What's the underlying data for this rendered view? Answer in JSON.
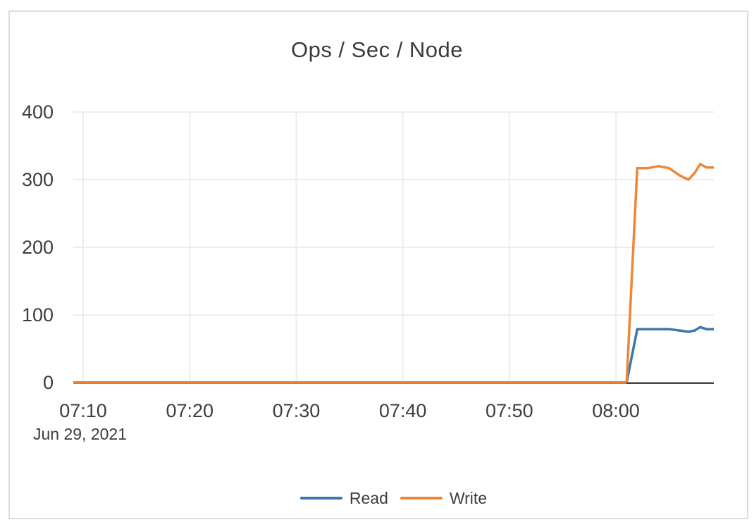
{
  "chart": {
    "title": "Ops / Sec / Node",
    "date_label": "Jun 29, 2021"
  },
  "chart_data": {
    "type": "line",
    "title": "Ops / Sec / Node",
    "xlabel": "time of day on Jun 29, 2021 (HH:MM)",
    "ylabel": "",
    "x_unit": "minutes after 07:00",
    "x_range_minutes": [
      9.07,
      69.19
    ],
    "ylim": [
      0,
      400
    ],
    "y_ticks": [
      0,
      100,
      200,
      300,
      400
    ],
    "x_ticks": [
      {
        "minute": 10,
        "label": "07:10"
      },
      {
        "minute": 20,
        "label": "07:20"
      },
      {
        "minute": 30,
        "label": "07:30"
      },
      {
        "minute": 40,
        "label": "07:40"
      },
      {
        "minute": 50,
        "label": "07:50"
      },
      {
        "minute": 60,
        "label": "08:00"
      }
    ],
    "date_label": "Jun 29, 2021",
    "grid": true,
    "legend_position": "bottom-center",
    "series": [
      {
        "name": "Read",
        "color": "#3a77ae",
        "x": [
          9.07,
          61,
          62,
          63,
          64,
          65,
          66,
          66.8,
          67.4,
          67.9,
          68.5,
          69.19
        ],
        "values": [
          0,
          0,
          79,
          79,
          79,
          79,
          77,
          75,
          77,
          82,
          79,
          79
        ]
      },
      {
        "name": "Write",
        "color": "#ef8636",
        "x": [
          9.07,
          61,
          62,
          63,
          64,
          65,
          66,
          66.8,
          67.4,
          67.9,
          68.5,
          69.19
        ],
        "values": [
          0,
          0,
          317,
          317,
          320,
          317,
          306,
          300,
          310,
          323,
          318,
          318
        ]
      }
    ]
  },
  "colors": {
    "read_line": "#3a77ae",
    "write_line": "#ef8636",
    "gridline": "#ededed",
    "axis_line": "#444444",
    "card_border": "#dcdcdc",
    "text": "#3d3d3d"
  }
}
